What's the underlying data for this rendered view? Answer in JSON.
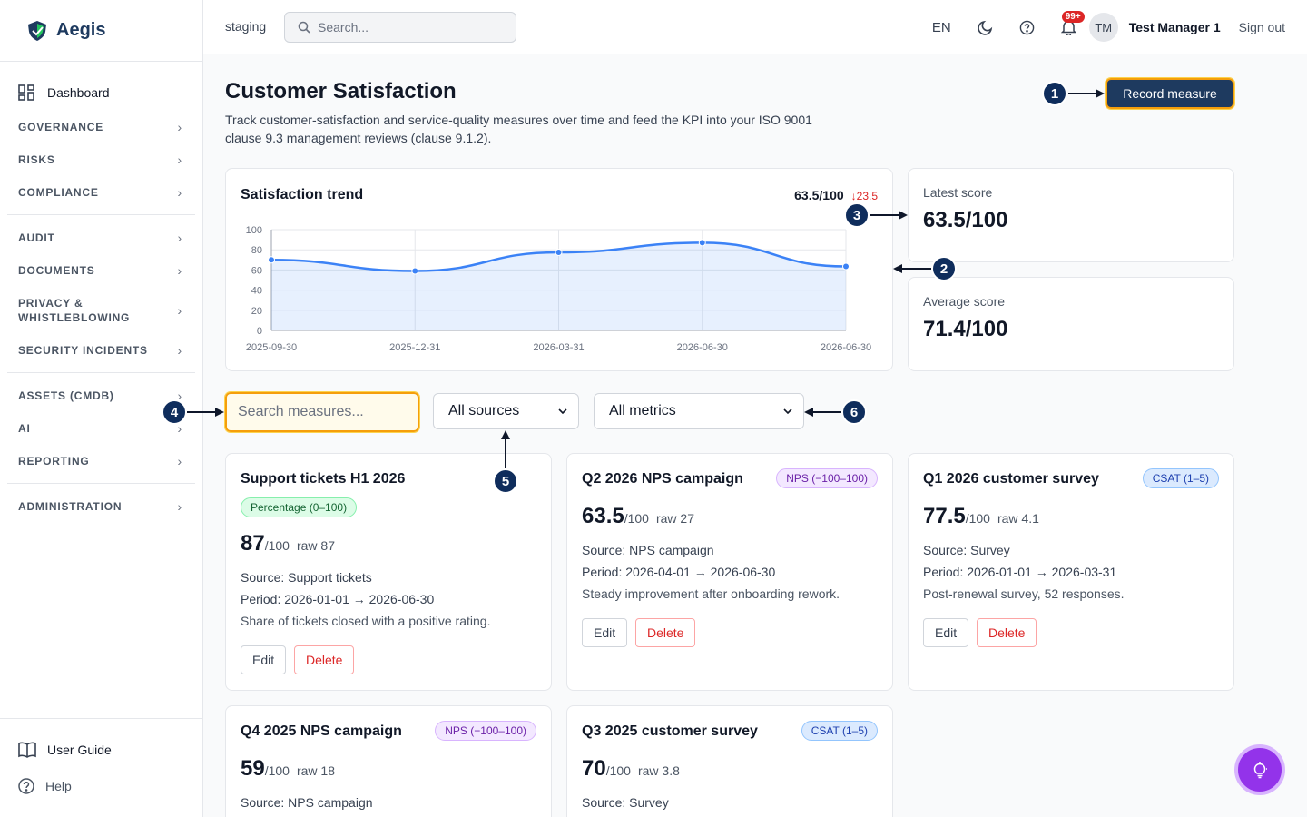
{
  "brand": {
    "name": "Aegis"
  },
  "sidebar": {
    "dashboard": "Dashboard",
    "groups": [
      [
        "GOVERNANCE",
        "RISKS",
        "COMPLIANCE"
      ],
      [
        "AUDIT",
        "DOCUMENTS",
        "PRIVACY & WHISTLEBLOWING",
        "SECURITY INCIDENTS"
      ],
      [
        "ASSETS (CMDB)",
        "AI",
        "REPORTING"
      ],
      [
        "ADMINISTRATION"
      ]
    ],
    "user_guide": "User Guide",
    "help": "Help"
  },
  "header": {
    "env": "staging",
    "search_placeholder": "Search...",
    "lang": "EN",
    "notif_badge": "99+",
    "avatar": "TM",
    "user": "Test Manager 1",
    "sign_out": "Sign out"
  },
  "page": {
    "title": "Customer Satisfaction",
    "description": "Track customer-satisfaction and service-quality measures over time and feed the KPI into your ISO 9001 clause 9.3 management reviews (clause 9.1.2).",
    "record_button": "Record measure"
  },
  "trend": {
    "title": "Satisfaction trend",
    "value": "63.5/100",
    "delta": "↓23.5"
  },
  "stats": {
    "latest_label": "Latest score",
    "latest_value": "63.5/100",
    "average_label": "Average score",
    "average_value": "71.4/100"
  },
  "filters": {
    "search_placeholder": "Search measures...",
    "source": "All sources",
    "metric": "All metrics"
  },
  "measures": [
    {
      "title": "Support tickets H1 2026",
      "tag": "Percentage (0–100)",
      "score": "87",
      "of": "/100",
      "raw": "raw 87",
      "source": "Source: Support tickets",
      "period": "Period: 2026-01-01 → 2026-06-30",
      "note": "Share of tickets closed with a positive rating.",
      "edit": "Edit",
      "delete": "Delete"
    },
    {
      "title": "Q2 2026 NPS campaign",
      "tag": "NPS (−100–100)",
      "score": "63.5",
      "of": "/100",
      "raw": "raw 27",
      "source": "Source: NPS campaign",
      "period": "Period: 2026-04-01 → 2026-06-30",
      "note": "Steady improvement after onboarding rework.",
      "edit": "Edit",
      "delete": "Delete"
    },
    {
      "title": "Q1 2026 customer survey",
      "tag": "CSAT (1–5)",
      "score": "77.5",
      "of": "/100",
      "raw": "raw 4.1",
      "source": "Source: Survey",
      "period": "Period: 2026-01-01 → 2026-03-31",
      "note": "Post-renewal survey, 52 responses.",
      "edit": "Edit",
      "delete": "Delete"
    },
    {
      "title": "Q4 2025 NPS campaign",
      "tag": "NPS (−100–100)",
      "score": "59",
      "of": "/100",
      "raw": "raw 18",
      "source": "Source: NPS campaign"
    },
    {
      "title": "Q3 2025 customer survey",
      "tag": "CSAT (1–5)",
      "score": "70",
      "of": "/100",
      "raw": "raw 3.8",
      "source": "Source: Survey"
    }
  ],
  "callouts": [
    "1",
    "2",
    "3",
    "4",
    "5",
    "6"
  ],
  "colors": {
    "accent": "#1e3a5f",
    "highlight": "#f59e0b",
    "line": "#3b82f6",
    "danger": "#dc2626"
  },
  "chart_data": {
    "type": "area",
    "x": [
      "2025-09-30",
      "2025-12-31",
      "2026-03-31",
      "2026-06-30",
      "2026-06-30"
    ],
    "values": [
      70,
      59,
      77.5,
      87,
      63.5
    ],
    "ylim": [
      0,
      100
    ],
    "yticks": [
      0,
      20,
      40,
      60,
      80,
      100
    ],
    "grid": true
  }
}
